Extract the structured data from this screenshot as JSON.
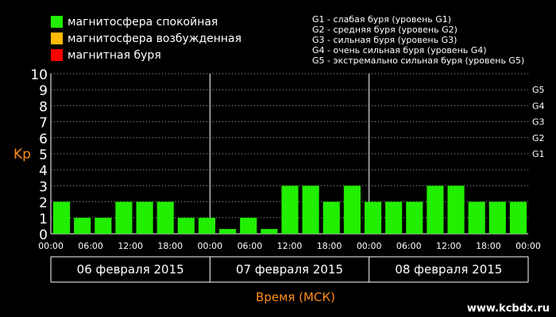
{
  "legend": {
    "items": [
      {
        "label": "магнитосфера спокойная",
        "color": "#22ee00"
      },
      {
        "label": "магнитосфера возбужденная",
        "color": "#ffbb00"
      },
      {
        "label": "магнитная буря",
        "color": "#ff0000"
      }
    ]
  },
  "g_legend": [
    "G1 - слабая буря (уровень G1)",
    "G2 - средняя буря (уровень G2)",
    "G3 - сильная буря (уровень G3)",
    "G4 - очень сильная буря (уровень G4)",
    "G5 - экстремально сильная буря (уровень G5)"
  ],
  "watermark": "www.kcbdx.ru",
  "chart_data": {
    "type": "bar",
    "ylabel": "Kp",
    "xlabel": "Время (МСК)",
    "ylim": [
      0,
      10
    ],
    "yticks": [
      "0",
      "1",
      "2",
      "3",
      "4",
      "5",
      "6",
      "7",
      "8",
      "9",
      "10"
    ],
    "right_ticks": [
      {
        "label": "G1",
        "value": 5
      },
      {
        "label": "G2",
        "value": 6
      },
      {
        "label": "G3",
        "value": 7
      },
      {
        "label": "G4",
        "value": 8
      },
      {
        "label": "G5",
        "value": 9
      }
    ],
    "xticks": [
      "00:00",
      "06:00",
      "12:00",
      "18:00",
      "00:00",
      "06:00",
      "12:00",
      "18:00",
      "00:00",
      "06:00",
      "12:00",
      "18:00",
      "00:00"
    ],
    "days": [
      "06 февраля 2015",
      "07 февраля 2015",
      "08 февраля 2015"
    ],
    "grid": true,
    "bar_color": "#22ee00",
    "values": [
      2,
      1,
      1,
      2,
      2,
      2,
      1,
      1,
      0.3,
      1,
      0.3,
      3,
      3,
      2,
      3,
      2,
      2,
      2,
      3,
      3,
      2,
      2,
      2
    ]
  }
}
